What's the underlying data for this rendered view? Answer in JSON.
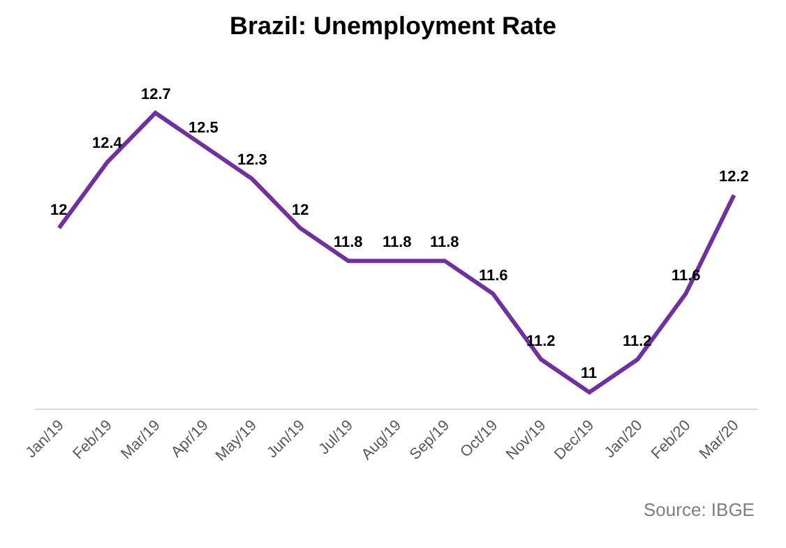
{
  "chart_data": {
    "type": "line",
    "title": "Brazil: Unemployment Rate",
    "categories": [
      "Jan/19",
      "Feb/19",
      "Mar/19",
      "Apr/19",
      "May/19",
      "Jun/19",
      "Jul/19",
      "Aug/19",
      "Sep/19",
      "Oct/19",
      "Nov/19",
      "Dec/19",
      "Jan/20",
      "Feb/20",
      "Mar/20"
    ],
    "series": [
      {
        "color": "#7030a0",
        "values": [
          12,
          12.4,
          12.7,
          12.5,
          12.3,
          12,
          11.8,
          11.8,
          11.8,
          11.6,
          11.2,
          11,
          11.2,
          11.6,
          12.2
        ]
      }
    ],
    "data_labels": true,
    "tick_labels": "x",
    "legend": false,
    "marker": "none",
    "line_style": "solid",
    "annotations": [
      "Source: IBGE"
    ]
  }
}
